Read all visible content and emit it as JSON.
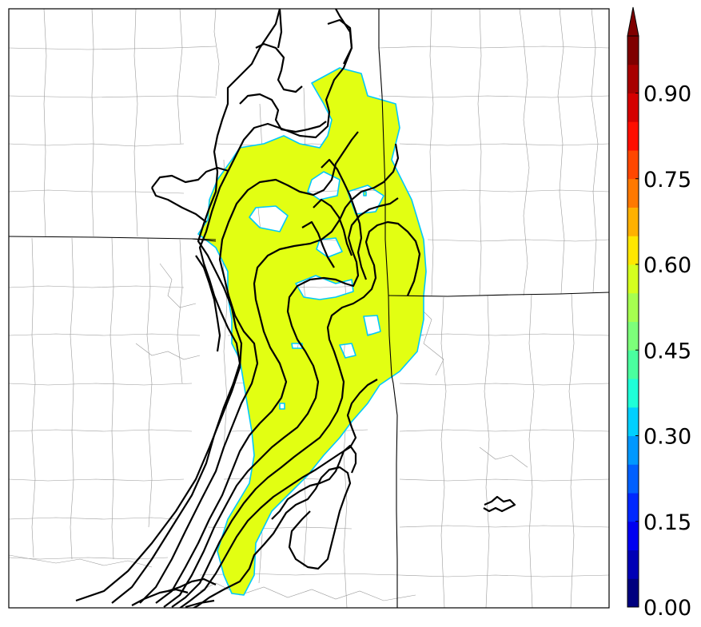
{
  "map": {
    "fill_color": "#e2ff12",
    "fill_edge_color": "#00c8ff",
    "background": "#ffffff",
    "county_line_color": "#9a9a9a",
    "state_line_color": "#000000",
    "contour_color": "#000000"
  },
  "colorbar": {
    "min": 0.0,
    "max": 1.0,
    "levels": [
      0.0,
      0.05,
      0.1,
      0.15,
      0.2,
      0.25,
      0.3,
      0.35,
      0.4,
      0.45,
      0.5,
      0.55,
      0.6,
      0.65,
      0.7,
      0.75,
      0.8,
      0.85,
      0.9,
      0.95,
      1.0
    ],
    "extend": "max",
    "colors": [
      "#00007f",
      "#0000b6",
      "#0000f1",
      "#0028ff",
      "#0060ff",
      "#0098ff",
      "#00d0ff",
      "#1effd8",
      "#4aff9f",
      "#7dff7a",
      "#a6ff50",
      "#d5ff1e",
      "#ffe700",
      "#ffb100",
      "#ff7900",
      "#ff4700",
      "#ff0e00",
      "#d50000",
      "#a80000",
      "#7f0000"
    ],
    "extend_color": "#7f0000",
    "tick_values": [
      0.0,
      0.15,
      0.3,
      0.45,
      0.6,
      0.75,
      0.9
    ],
    "tick_labels": [
      "0.00",
      "0.15",
      "0.30",
      "0.45",
      "0.60",
      "0.75",
      "0.90"
    ]
  }
}
